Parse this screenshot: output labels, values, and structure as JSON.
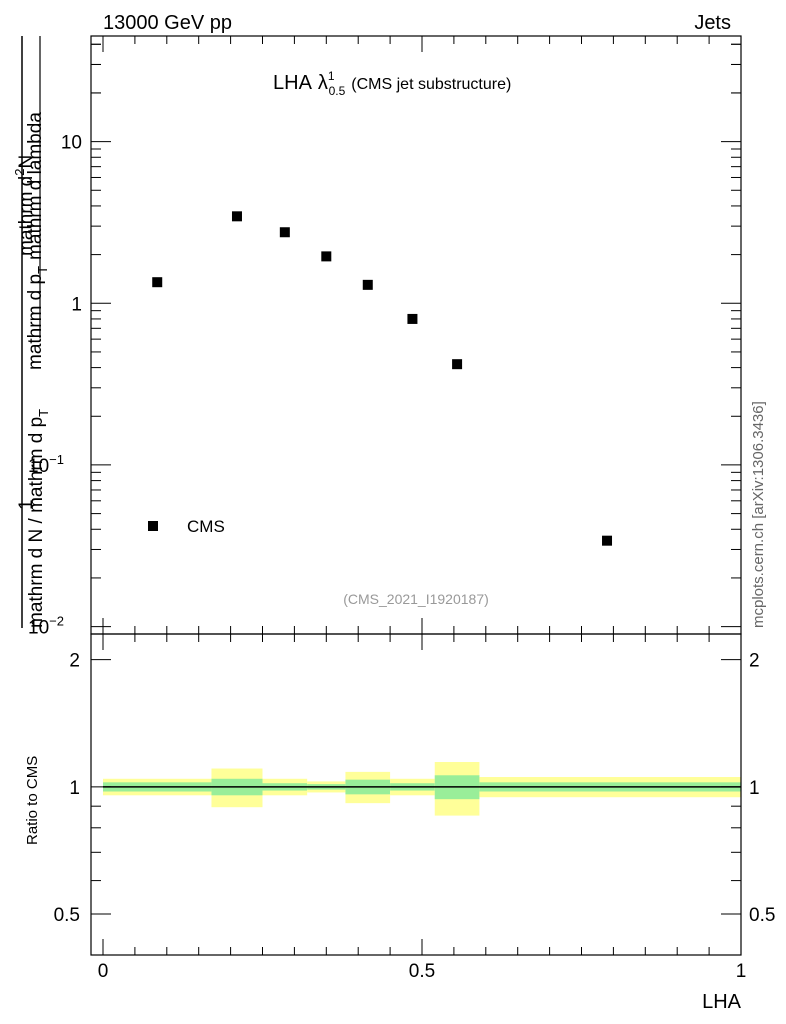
{
  "header": {
    "left": "13000 GeV pp",
    "right": "Jets"
  },
  "side_label": "mcplots.cern.ch [arXiv:1306.3436]",
  "chart_data": [
    {
      "type": "scatter",
      "title": "LHA",
      "title_symbol": "λ",
      "title_sup": "1",
      "title_sub": "0.5",
      "title_suffix": "(CMS jet substructure)",
      "analysis_tag": "(CMS_2021_I1920187)",
      "ylabel_parts": {
        "numerator_one": "1",
        "denominator_one": "mathrm d N / mathrm d p",
        "denominator_one_sub": "T",
        "numerator_two": "mathrm d",
        "numerator_two_sup": "2",
        "numerator_two_tail": "N",
        "denominator_two": "mathrm d p",
        "denominator_two_sub": "T",
        "denominator_two_tail": "mathrm d lambda"
      },
      "yscale": "log",
      "ylim": [
        0.009,
        45
      ],
      "xlim": [
        -0.02,
        1.02
      ],
      "y_ticks": [
        {
          "value": 10,
          "label": "10"
        },
        {
          "value": 1,
          "label": "1"
        },
        {
          "value": 0.1,
          "label": "10",
          "sup": "−1"
        },
        {
          "value": 0.01,
          "label": "10",
          "sup": "−2"
        }
      ],
      "legend": {
        "position": "bottom-left",
        "entries": [
          "CMS"
        ]
      },
      "series": [
        {
          "name": "CMS",
          "x": [
            0.085,
            0.21,
            0.285,
            0.35,
            0.415,
            0.485,
            0.555,
            0.79
          ],
          "y": [
            1.35,
            3.45,
            2.75,
            1.95,
            1.3,
            0.8,
            0.42,
            0.034
          ]
        }
      ]
    },
    {
      "type": "line",
      "ylabel": "Ratio to CMS",
      "xlabel": "LHA",
      "xlim": [
        -0.02,
        1.02
      ],
      "ylim": [
        0.4,
        2.3
      ],
      "y_ticks": [
        {
          "value": 2,
          "label": "2"
        },
        {
          "value": 1,
          "label": "1"
        },
        {
          "value": 0.5,
          "label": "0.5"
        }
      ],
      "x_ticks": [
        {
          "value": 0,
          "label": "0"
        },
        {
          "value": 0.5,
          "label": "0.5"
        },
        {
          "value": 1,
          "label": "1"
        }
      ],
      "band_colors": {
        "inner": "#99ee99",
        "outer": "#ffff99"
      },
      "bands": [
        {
          "x0": 0.0,
          "x1": 0.17,
          "inner": [
            0.975,
            1.025
          ],
          "outer": [
            0.955,
            1.045
          ]
        },
        {
          "x0": 0.17,
          "x1": 0.25,
          "inner": [
            0.955,
            1.045
          ],
          "outer": [
            0.895,
            1.105
          ]
        },
        {
          "x0": 0.25,
          "x1": 0.32,
          "inner": [
            0.98,
            1.02
          ],
          "outer": [
            0.955,
            1.045
          ]
        },
        {
          "x0": 0.32,
          "x1": 0.38,
          "inner": [
            0.985,
            1.015
          ],
          "outer": [
            0.97,
            1.03
          ]
        },
        {
          "x0": 0.38,
          "x1": 0.45,
          "inner": [
            0.96,
            1.04
          ],
          "outer": [
            0.915,
            1.085
          ]
        },
        {
          "x0": 0.45,
          "x1": 0.52,
          "inner": [
            0.98,
            1.02
          ],
          "outer": [
            0.955,
            1.045
          ]
        },
        {
          "x0": 0.52,
          "x1": 0.59,
          "inner": [
            0.935,
            1.065
          ],
          "outer": [
            0.855,
            1.145
          ]
        },
        {
          "x0": 0.59,
          "x1": 1.0,
          "inner": [
            0.975,
            1.025
          ],
          "outer": [
            0.945,
            1.055
          ]
        }
      ]
    }
  ]
}
